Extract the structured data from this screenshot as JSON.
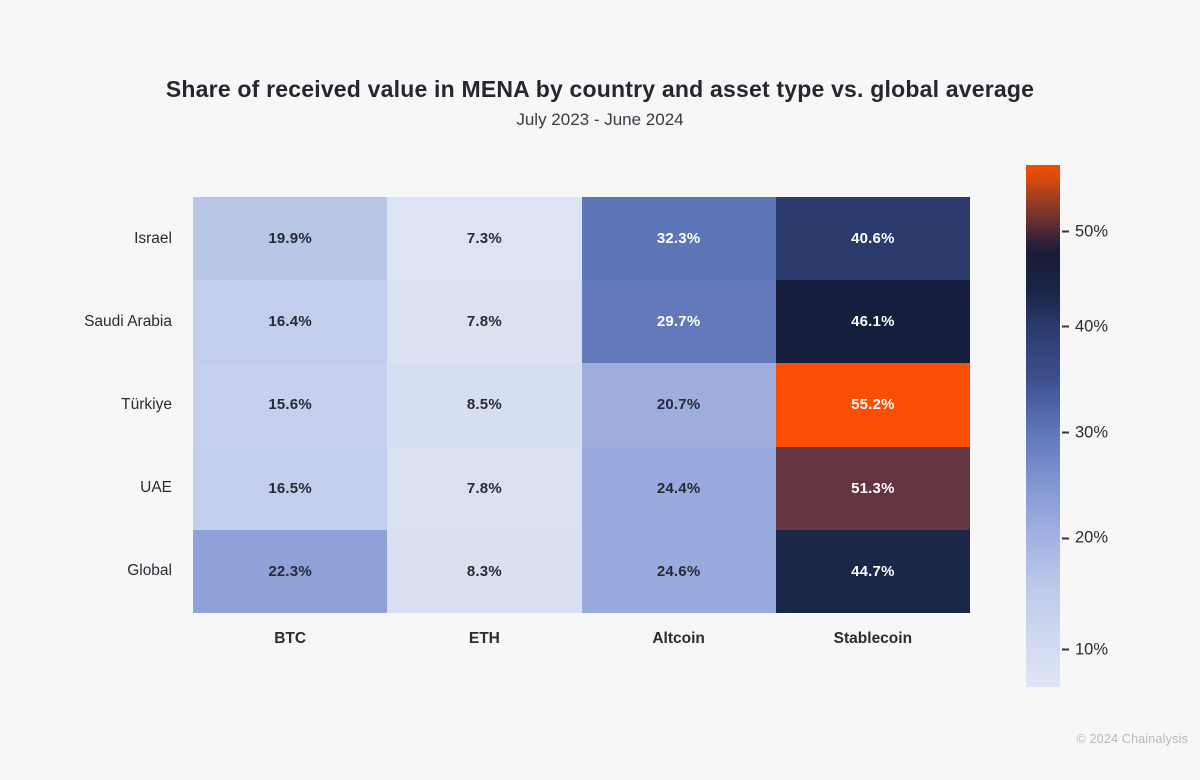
{
  "title": "Share of received value in MENA by country and asset type vs. global average",
  "subtitle": "July 2023 - June 2024",
  "footer": "© 2024 Chainalysis",
  "theme": {
    "background": "#f7f7f8",
    "title_color": "#26262e",
    "label_color": "#2a2b33",
    "cell_text_dark": "#262b36",
    "cell_text_light": "#ffffff",
    "footer_color": "#b7b8bf",
    "accent_orange": "#fb4e04"
  },
  "chart_data": {
    "type": "heatmap",
    "title": "Share of received value in MENA by country and asset type vs. global average",
    "subtitle": "July 2023 - June 2024",
    "rows": [
      "Israel",
      "Saudi Arabia",
      "Türkiye",
      "UAE",
      "Global"
    ],
    "columns": [
      "BTC",
      "ETH",
      "Altcoin",
      "Stablecoin"
    ],
    "values": [
      [
        19.9,
        7.3,
        32.3,
        40.6
      ],
      [
        16.4,
        7.8,
        29.7,
        46.1
      ],
      [
        15.6,
        8.5,
        20.7,
        55.2
      ],
      [
        16.5,
        7.8,
        24.4,
        51.3
      ],
      [
        22.3,
        8.3,
        24.6,
        44.7
      ]
    ],
    "unit": "%",
    "cell_colors": [
      [
        "#b9c6e8",
        "#dce3f4",
        "#5d76b8",
        "#2a3a6d"
      ],
      [
        "#c3cdec",
        "#d9e1f2",
        "#6379bb",
        "#141e3c"
      ],
      [
        "#c6cfed",
        "#d6def1",
        "#9dadde",
        "#fb4e04"
      ],
      [
        "#c3cdec",
        "#d9e1f2",
        "#98aadd",
        "#653441"
      ],
      [
        "#8ea2d8",
        "#d8e0f1",
        "#99abde",
        "#1a2749"
      ]
    ],
    "colorbar": {
      "orientation": "vertical",
      "range_top": 56.4,
      "range_bottom": 6.5,
      "ticks": [
        {
          "label": "50%",
          "pos": 0.128
        },
        {
          "label": "40%",
          "pos": 0.31
        },
        {
          "label": "30%",
          "pos": 0.513
        },
        {
          "label": "20%",
          "pos": 0.715
        },
        {
          "label": "10%",
          "pos": 0.929
        }
      ],
      "gradient_stops": [
        {
          "pos": 0.0,
          "color": "#f24d04"
        },
        {
          "pos": 0.03,
          "color": "#d54910"
        },
        {
          "pos": 0.057,
          "color": "#a8401c"
        },
        {
          "pos": 0.096,
          "color": "#763629"
        },
        {
          "pos": 0.128,
          "color": "#4a2733"
        },
        {
          "pos": 0.153,
          "color": "#2a1e3a"
        },
        {
          "pos": 0.172,
          "color": "#171c39"
        },
        {
          "pos": 0.24,
          "color": "#1a2445"
        },
        {
          "pos": 0.31,
          "color": "#2a3a6d"
        },
        {
          "pos": 0.412,
          "color": "#3e508e"
        },
        {
          "pos": 0.513,
          "color": "#5f77b9"
        },
        {
          "pos": 0.603,
          "color": "#7f94cf"
        },
        {
          "pos": 0.715,
          "color": "#a3b2e2"
        },
        {
          "pos": 0.814,
          "color": "#bfcaea"
        },
        {
          "pos": 0.929,
          "color": "#d3dcf1"
        },
        {
          "pos": 1.0,
          "color": "#dee5f5"
        }
      ]
    }
  }
}
